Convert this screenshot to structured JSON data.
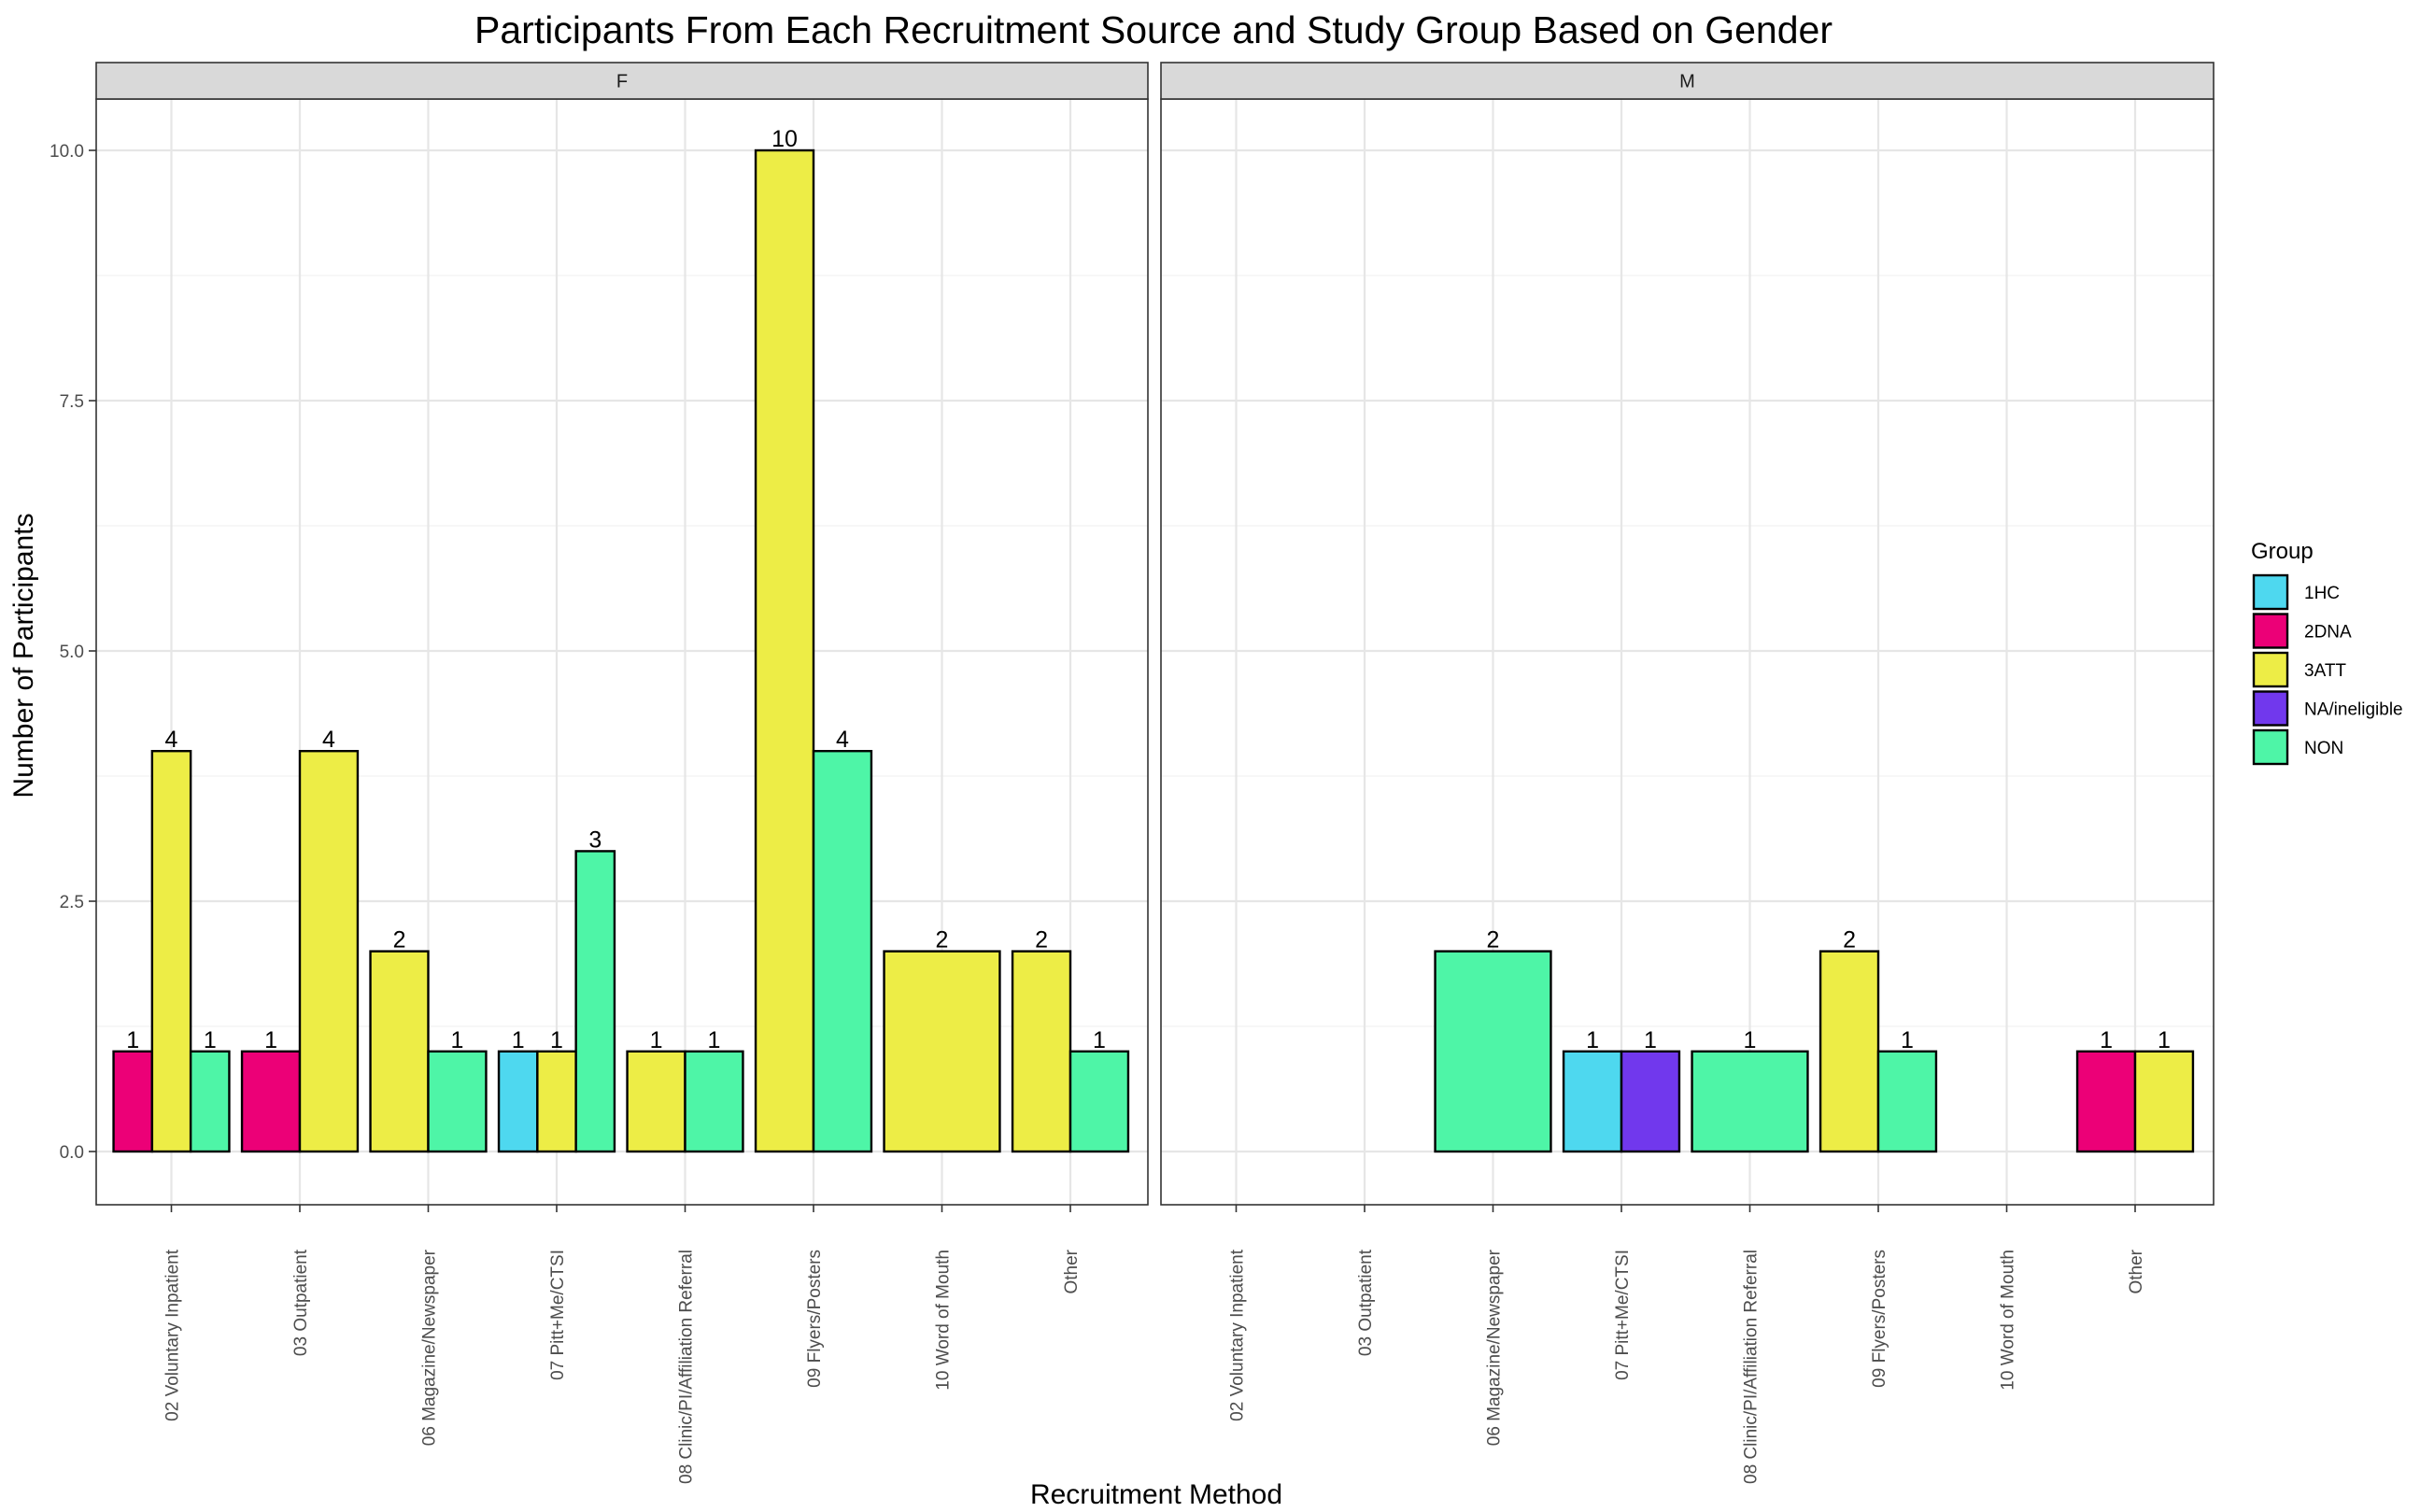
{
  "chart_data": {
    "type": "bar",
    "title": "Participants From Each Recruitment Source and Study Group Based on Gender",
    "xlabel": "Recruitment Method",
    "ylabel": "Number of Participants",
    "ylim": [
      -0.5,
      10.5
    ],
    "yticks": [
      0,
      2.5,
      5,
      7.5,
      10
    ],
    "ytick_labels": [
      "0.0",
      "2.5",
      "5.0",
      "7.5",
      "10.0"
    ],
    "grid": true,
    "legend_position": "right",
    "facets": [
      "F",
      "M"
    ],
    "categories": [
      "02 Voluntary Inpatient",
      "03 Outpatient",
      "06 Magazine/Newspaper",
      "07 Pitt+Me/CTSI",
      "08 Clinic/PI/Affiliation Referral",
      "09 Flyers/Posters",
      "10 Word of Mouth",
      "Other"
    ],
    "legend": {
      "title": "Group",
      "items": [
        {
          "name": "1HC",
          "color": "#4ed8ef"
        },
        {
          "name": "2DNA",
          "color": "#ec0077"
        },
        {
          "name": "3ATT",
          "color": "#eded46"
        },
        {
          "name": "NA/ineligible",
          "color": "#7138ed"
        },
        {
          "name": "NON",
          "color": "#4ef5a7"
        }
      ]
    },
    "panels": [
      {
        "facet": "F",
        "data": [
          {
            "category": "02 Voluntary Inpatient",
            "bars": [
              {
                "group": "2DNA",
                "value": 1
              },
              {
                "group": "3ATT",
                "value": 4
              },
              {
                "group": "NON",
                "value": 1
              }
            ]
          },
          {
            "category": "03 Outpatient",
            "bars": [
              {
                "group": "2DNA",
                "value": 1
              },
              {
                "group": "3ATT",
                "value": 4
              }
            ]
          },
          {
            "category": "06 Magazine/Newspaper",
            "bars": [
              {
                "group": "3ATT",
                "value": 2
              },
              {
                "group": "NON",
                "value": 1
              }
            ]
          },
          {
            "category": "07 Pitt+Me/CTSI",
            "bars": [
              {
                "group": "1HC",
                "value": 1
              },
              {
                "group": "3ATT",
                "value": 1
              },
              {
                "group": "NON",
                "value": 3
              }
            ]
          },
          {
            "category": "08 Clinic/PI/Affiliation Referral",
            "bars": [
              {
                "group": "3ATT",
                "value": 1
              },
              {
                "group": "NON",
                "value": 1
              }
            ]
          },
          {
            "category": "09 Flyers/Posters",
            "bars": [
              {
                "group": "3ATT",
                "value": 10
              },
              {
                "group": "NON",
                "value": 4
              }
            ]
          },
          {
            "category": "10 Word of Mouth",
            "bars": [
              {
                "group": "3ATT",
                "value": 2
              }
            ]
          },
          {
            "category": "Other",
            "bars": [
              {
                "group": "3ATT",
                "value": 2
              },
              {
                "group": "NON",
                "value": 1
              }
            ]
          }
        ]
      },
      {
        "facet": "M",
        "data": [
          {
            "category": "02 Voluntary Inpatient",
            "bars": []
          },
          {
            "category": "03 Outpatient",
            "bars": []
          },
          {
            "category": "06 Magazine/Newspaper",
            "bars": [
              {
                "group": "NON",
                "value": 2
              }
            ]
          },
          {
            "category": "07 Pitt+Me/CTSI",
            "bars": [
              {
                "group": "1HC",
                "value": 1
              },
              {
                "group": "NA/ineligible",
                "value": 1
              }
            ]
          },
          {
            "category": "08 Clinic/PI/Affiliation Referral",
            "bars": [
              {
                "group": "NON",
                "value": 1
              }
            ]
          },
          {
            "category": "09 Flyers/Posters",
            "bars": [
              {
                "group": "3ATT",
                "value": 2
              },
              {
                "group": "NON",
                "value": 1
              }
            ]
          },
          {
            "category": "10 Word of Mouth",
            "bars": []
          },
          {
            "category": "Other",
            "bars": [
              {
                "group": "2DNA",
                "value": 1
              },
              {
                "group": "3ATT",
                "value": 1
              }
            ]
          }
        ]
      }
    ]
  }
}
